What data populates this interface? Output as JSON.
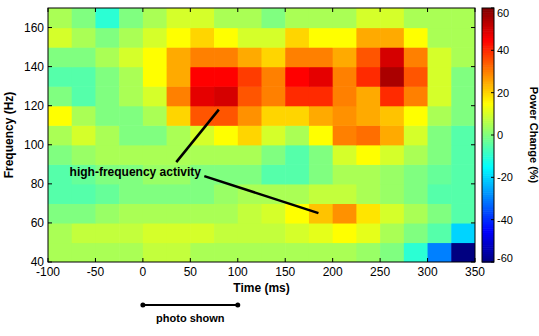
{
  "chart_data": {
    "type": "heatmap",
    "xlabel": "Time (ms)",
    "ylabel": "Frequency (Hz)",
    "xlim": [
      -100,
      350
    ],
    "xticks": [
      -100,
      -50,
      0,
      50,
      100,
      150,
      200,
      250,
      300,
      350
    ],
    "ylim": [
      40,
      170
    ],
    "yticks": [
      40,
      60,
      80,
      100,
      120,
      140,
      160
    ],
    "xbins": [
      -100,
      -75,
      -50,
      -25,
      0,
      25,
      50,
      75,
      100,
      125,
      150,
      175,
      200,
      225,
      250,
      275,
      300,
      325,
      350
    ],
    "ybins": [
      40,
      50,
      60,
      70,
      80,
      90,
      100,
      110,
      120,
      130,
      140,
      150,
      160,
      170
    ],
    "cells": [
      [
        5,
        5,
        5,
        5,
        8,
        8,
        5,
        5,
        5,
        5,
        5,
        5,
        5,
        3,
        0,
        -10,
        -30,
        -60
      ],
      [
        5,
        8,
        8,
        8,
        10,
        10,
        10,
        8,
        8,
        8,
        10,
        12,
        15,
        12,
        5,
        0,
        -5,
        -20
      ],
      [
        0,
        0,
        3,
        5,
        5,
        5,
        5,
        5,
        8,
        10,
        15,
        22,
        28,
        18,
        10,
        5,
        0,
        -5
      ],
      [
        -5,
        -5,
        -3,
        0,
        0,
        0,
        0,
        3,
        5,
        5,
        5,
        8,
        8,
        5,
        3,
        0,
        -5,
        -5
      ],
      [
        -5,
        -3,
        0,
        0,
        3,
        3,
        0,
        0,
        0,
        -5,
        -5,
        0,
        5,
        5,
        3,
        0,
        -3,
        -5
      ],
      [
        0,
        3,
        5,
        5,
        5,
        5,
        5,
        5,
        5,
        0,
        -5,
        0,
        10,
        15,
        10,
        5,
        0,
        -5
      ],
      [
        5,
        10,
        5,
        0,
        0,
        5,
        10,
        15,
        20,
        10,
        5,
        15,
        30,
        32,
        25,
        10,
        0,
        -5
      ],
      [
        15,
        5,
        0,
        0,
        5,
        20,
        35,
        35,
        28,
        20,
        20,
        25,
        28,
        25,
        22,
        15,
        5,
        0
      ],
      [
        0,
        -5,
        0,
        5,
        10,
        30,
        48,
        50,
        35,
        30,
        40,
        40,
        30,
        25,
        40,
        30,
        10,
        0
      ],
      [
        -5,
        -5,
        0,
        5,
        15,
        25,
        45,
        45,
        38,
        30,
        45,
        48,
        30,
        40,
        55,
        35,
        10,
        0
      ],
      [
        0,
        0,
        5,
        10,
        15,
        25,
        30,
        30,
        25,
        20,
        30,
        30,
        25,
        35,
        50,
        30,
        10,
        5
      ],
      [
        10,
        5,
        0,
        5,
        10,
        15,
        20,
        15,
        10,
        10,
        20,
        15,
        15,
        25,
        25,
        15,
        5,
        5
      ],
      [
        5,
        0,
        -10,
        0,
        5,
        10,
        10,
        5,
        5,
        0,
        5,
        5,
        5,
        10,
        10,
        5,
        5,
        5
      ]
    ],
    "colorbar": {
      "label": "Power Change (%)",
      "range": [
        -60,
        60
      ],
      "ticks": [
        -60,
        -40,
        -20,
        0,
        20,
        40,
        60
      ]
    },
    "annotations": [
      {
        "text": "high-frequency activity",
        "x": -8,
        "y": 86,
        "arrows": [
          [
            80,
            118
          ],
          [
            185,
            65
          ]
        ]
      }
    ],
    "stimulus": {
      "label": "photo shown",
      "start": 0,
      "end": 100
    }
  }
}
